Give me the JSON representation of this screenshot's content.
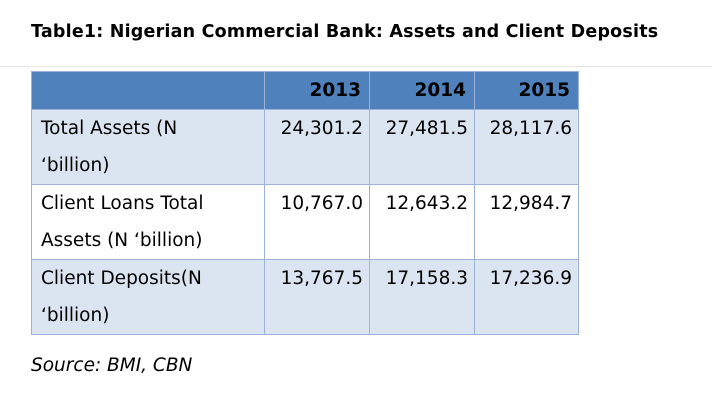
{
  "title": "Table1: Nigerian Commercial Bank: Assets and Client Deposits",
  "table": {
    "headers": [
      "",
      "2013",
      "2014",
      "2015"
    ],
    "rows": [
      {
        "label_line1": "Total Assets (N",
        "label_line2": "‘billion)",
        "values": [
          "24,301.2",
          "27,481.5",
          "28,117.6"
        ]
      },
      {
        "label_line1": "Client Loans Total",
        "label_line2": "Assets (N ‘billion)",
        "values": [
          "10,767.0",
          "12,643.2",
          "12,984.7"
        ]
      },
      {
        "label_line1": "Client Deposits(N",
        "label_line2": "‘billion)",
        "values": [
          "13,767.5",
          "17,158.3",
          "17,236.9"
        ]
      }
    ]
  },
  "source": "Source: BMI, CBN",
  "colors": {
    "header_fill": "#4f81bd",
    "band_fill": "#dbe5f1",
    "border": "#9db3d6"
  }
}
